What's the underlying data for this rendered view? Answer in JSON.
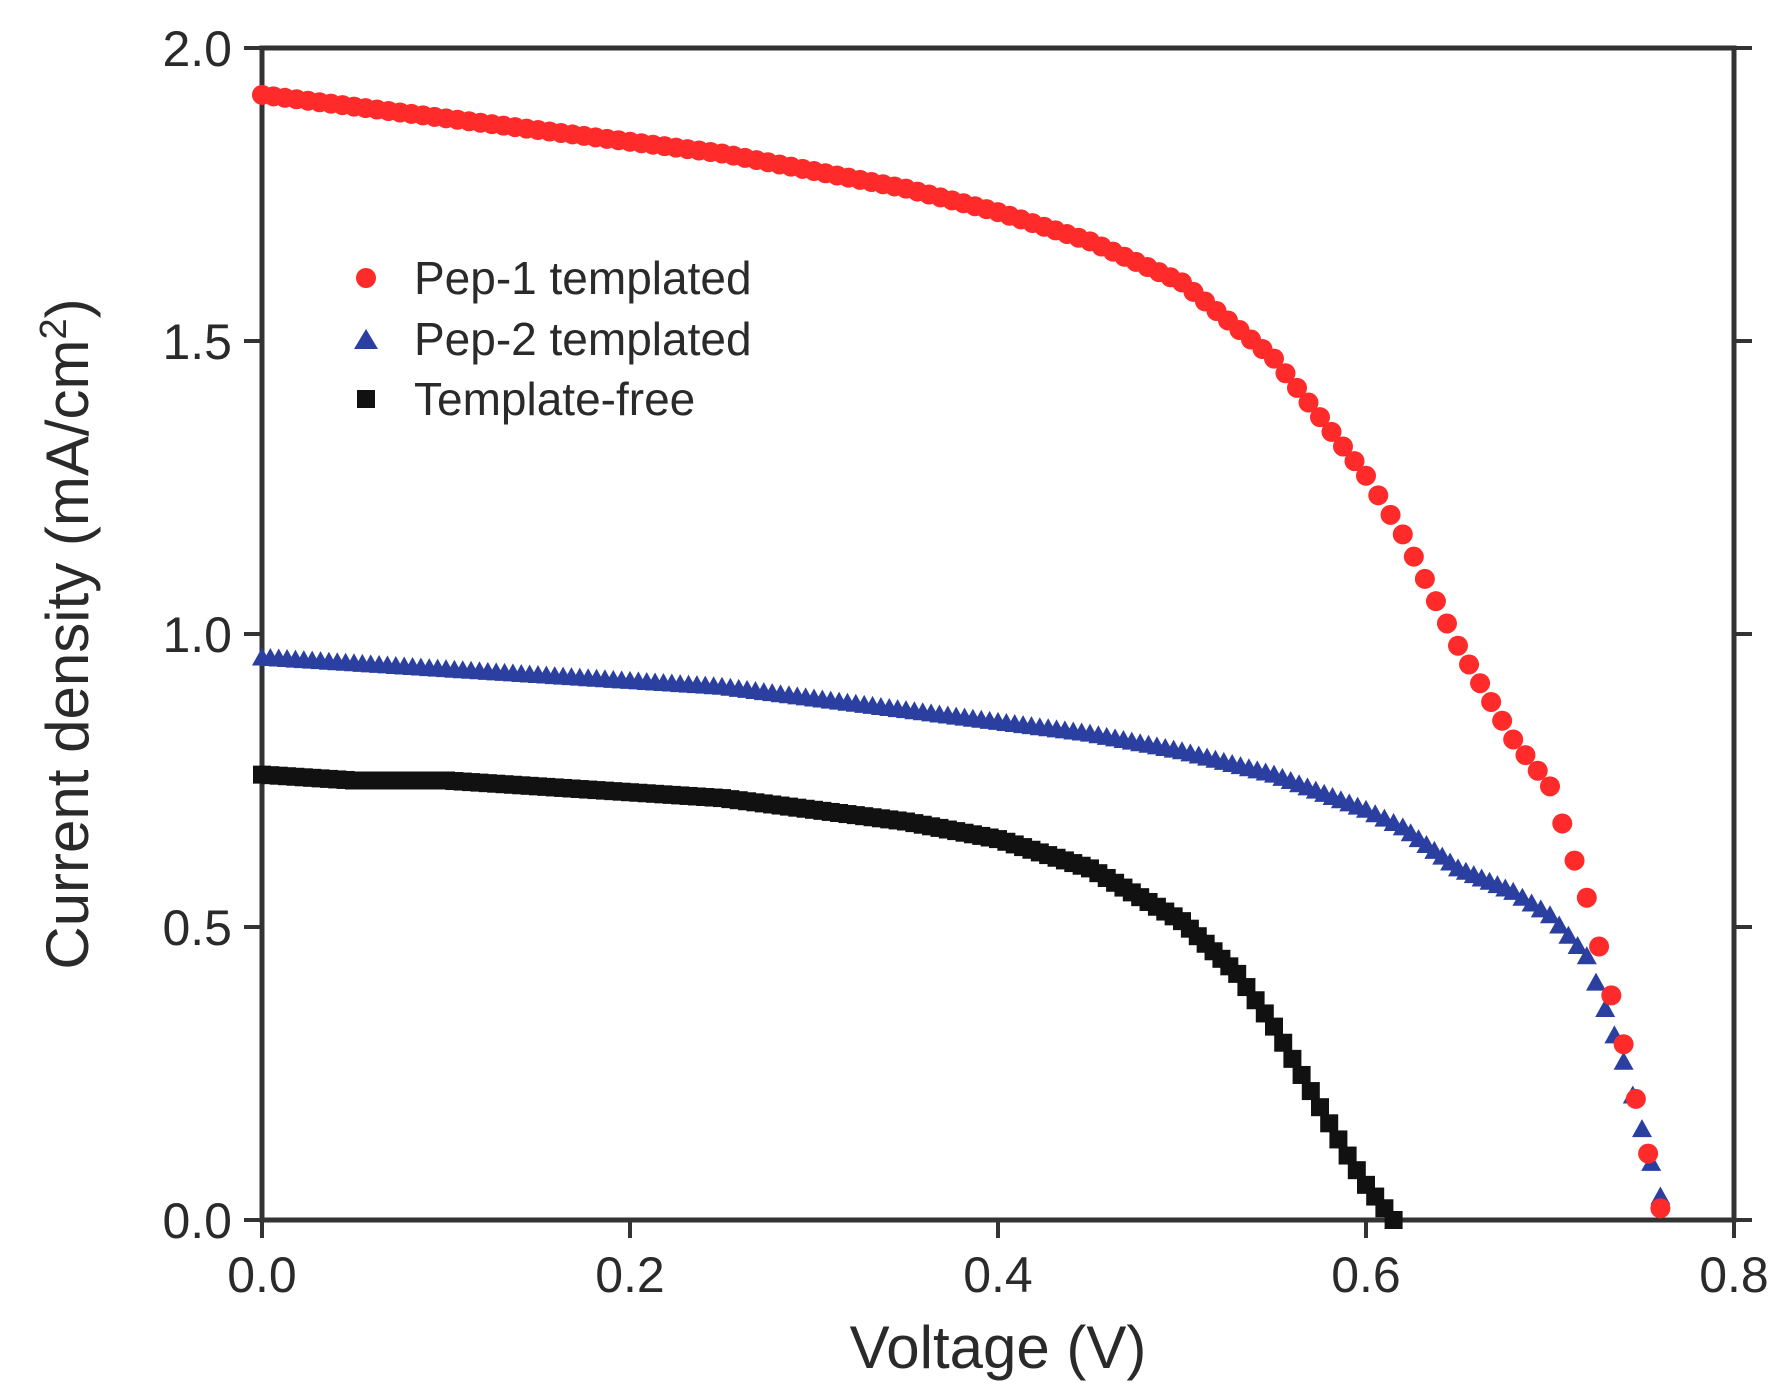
{
  "chart_data": {
    "type": "scatter",
    "title": "",
    "xlabel": "Voltage (V)",
    "ylabel": "Current density (mA/cm",
    "ylabel_superscript": "2",
    "ylabel_close": ")",
    "xlim": [
      0.0,
      0.8
    ],
    "ylim": [
      0.0,
      2.0
    ],
    "xticks": [
      "0.0",
      "0.2",
      "0.4",
      "0.6",
      "0.8"
    ],
    "yticks": [
      "0.0",
      "0.5",
      "1.0",
      "1.5",
      "2.0"
    ],
    "grid": false,
    "legend_position": "upper-left",
    "series": [
      {
        "name": "Pep-1 templated",
        "marker": "circle",
        "color": "#ff2a2a",
        "x": [
          0.0,
          0.05,
          0.1,
          0.15,
          0.2,
          0.25,
          0.3,
          0.35,
          0.4,
          0.45,
          0.5,
          0.55,
          0.6,
          0.62,
          0.65,
          0.68,
          0.7,
          0.72,
          0.74,
          0.76
        ],
        "y": [
          1.92,
          1.9,
          1.88,
          1.86,
          1.84,
          1.82,
          1.79,
          1.76,
          1.72,
          1.67,
          1.6,
          1.47,
          1.27,
          1.17,
          0.98,
          0.82,
          0.74,
          0.55,
          0.3,
          0.02
        ]
      },
      {
        "name": "Pep-2 templated",
        "marker": "triangle",
        "color": "#2a3fa0",
        "x": [
          0.0,
          0.05,
          0.1,
          0.15,
          0.2,
          0.25,
          0.3,
          0.35,
          0.4,
          0.45,
          0.5,
          0.55,
          0.6,
          0.62,
          0.65,
          0.68,
          0.7,
          0.72,
          0.74,
          0.76
        ],
        "y": [
          0.96,
          0.95,
          0.94,
          0.93,
          0.92,
          0.91,
          0.89,
          0.87,
          0.85,
          0.83,
          0.8,
          0.76,
          0.7,
          0.67,
          0.6,
          0.56,
          0.52,
          0.45,
          0.27,
          0.04
        ]
      },
      {
        "name": "Template-free",
        "marker": "square",
        "color": "#111111",
        "x": [
          0.0,
          0.05,
          0.1,
          0.15,
          0.2,
          0.25,
          0.3,
          0.35,
          0.4,
          0.45,
          0.5,
          0.53,
          0.55,
          0.57,
          0.59,
          0.6,
          0.61,
          0.615
        ],
        "y": [
          0.76,
          0.75,
          0.75,
          0.74,
          0.73,
          0.72,
          0.7,
          0.68,
          0.65,
          0.6,
          0.51,
          0.42,
          0.33,
          0.22,
          0.11,
          0.06,
          0.02,
          0.0
        ]
      }
    ]
  }
}
